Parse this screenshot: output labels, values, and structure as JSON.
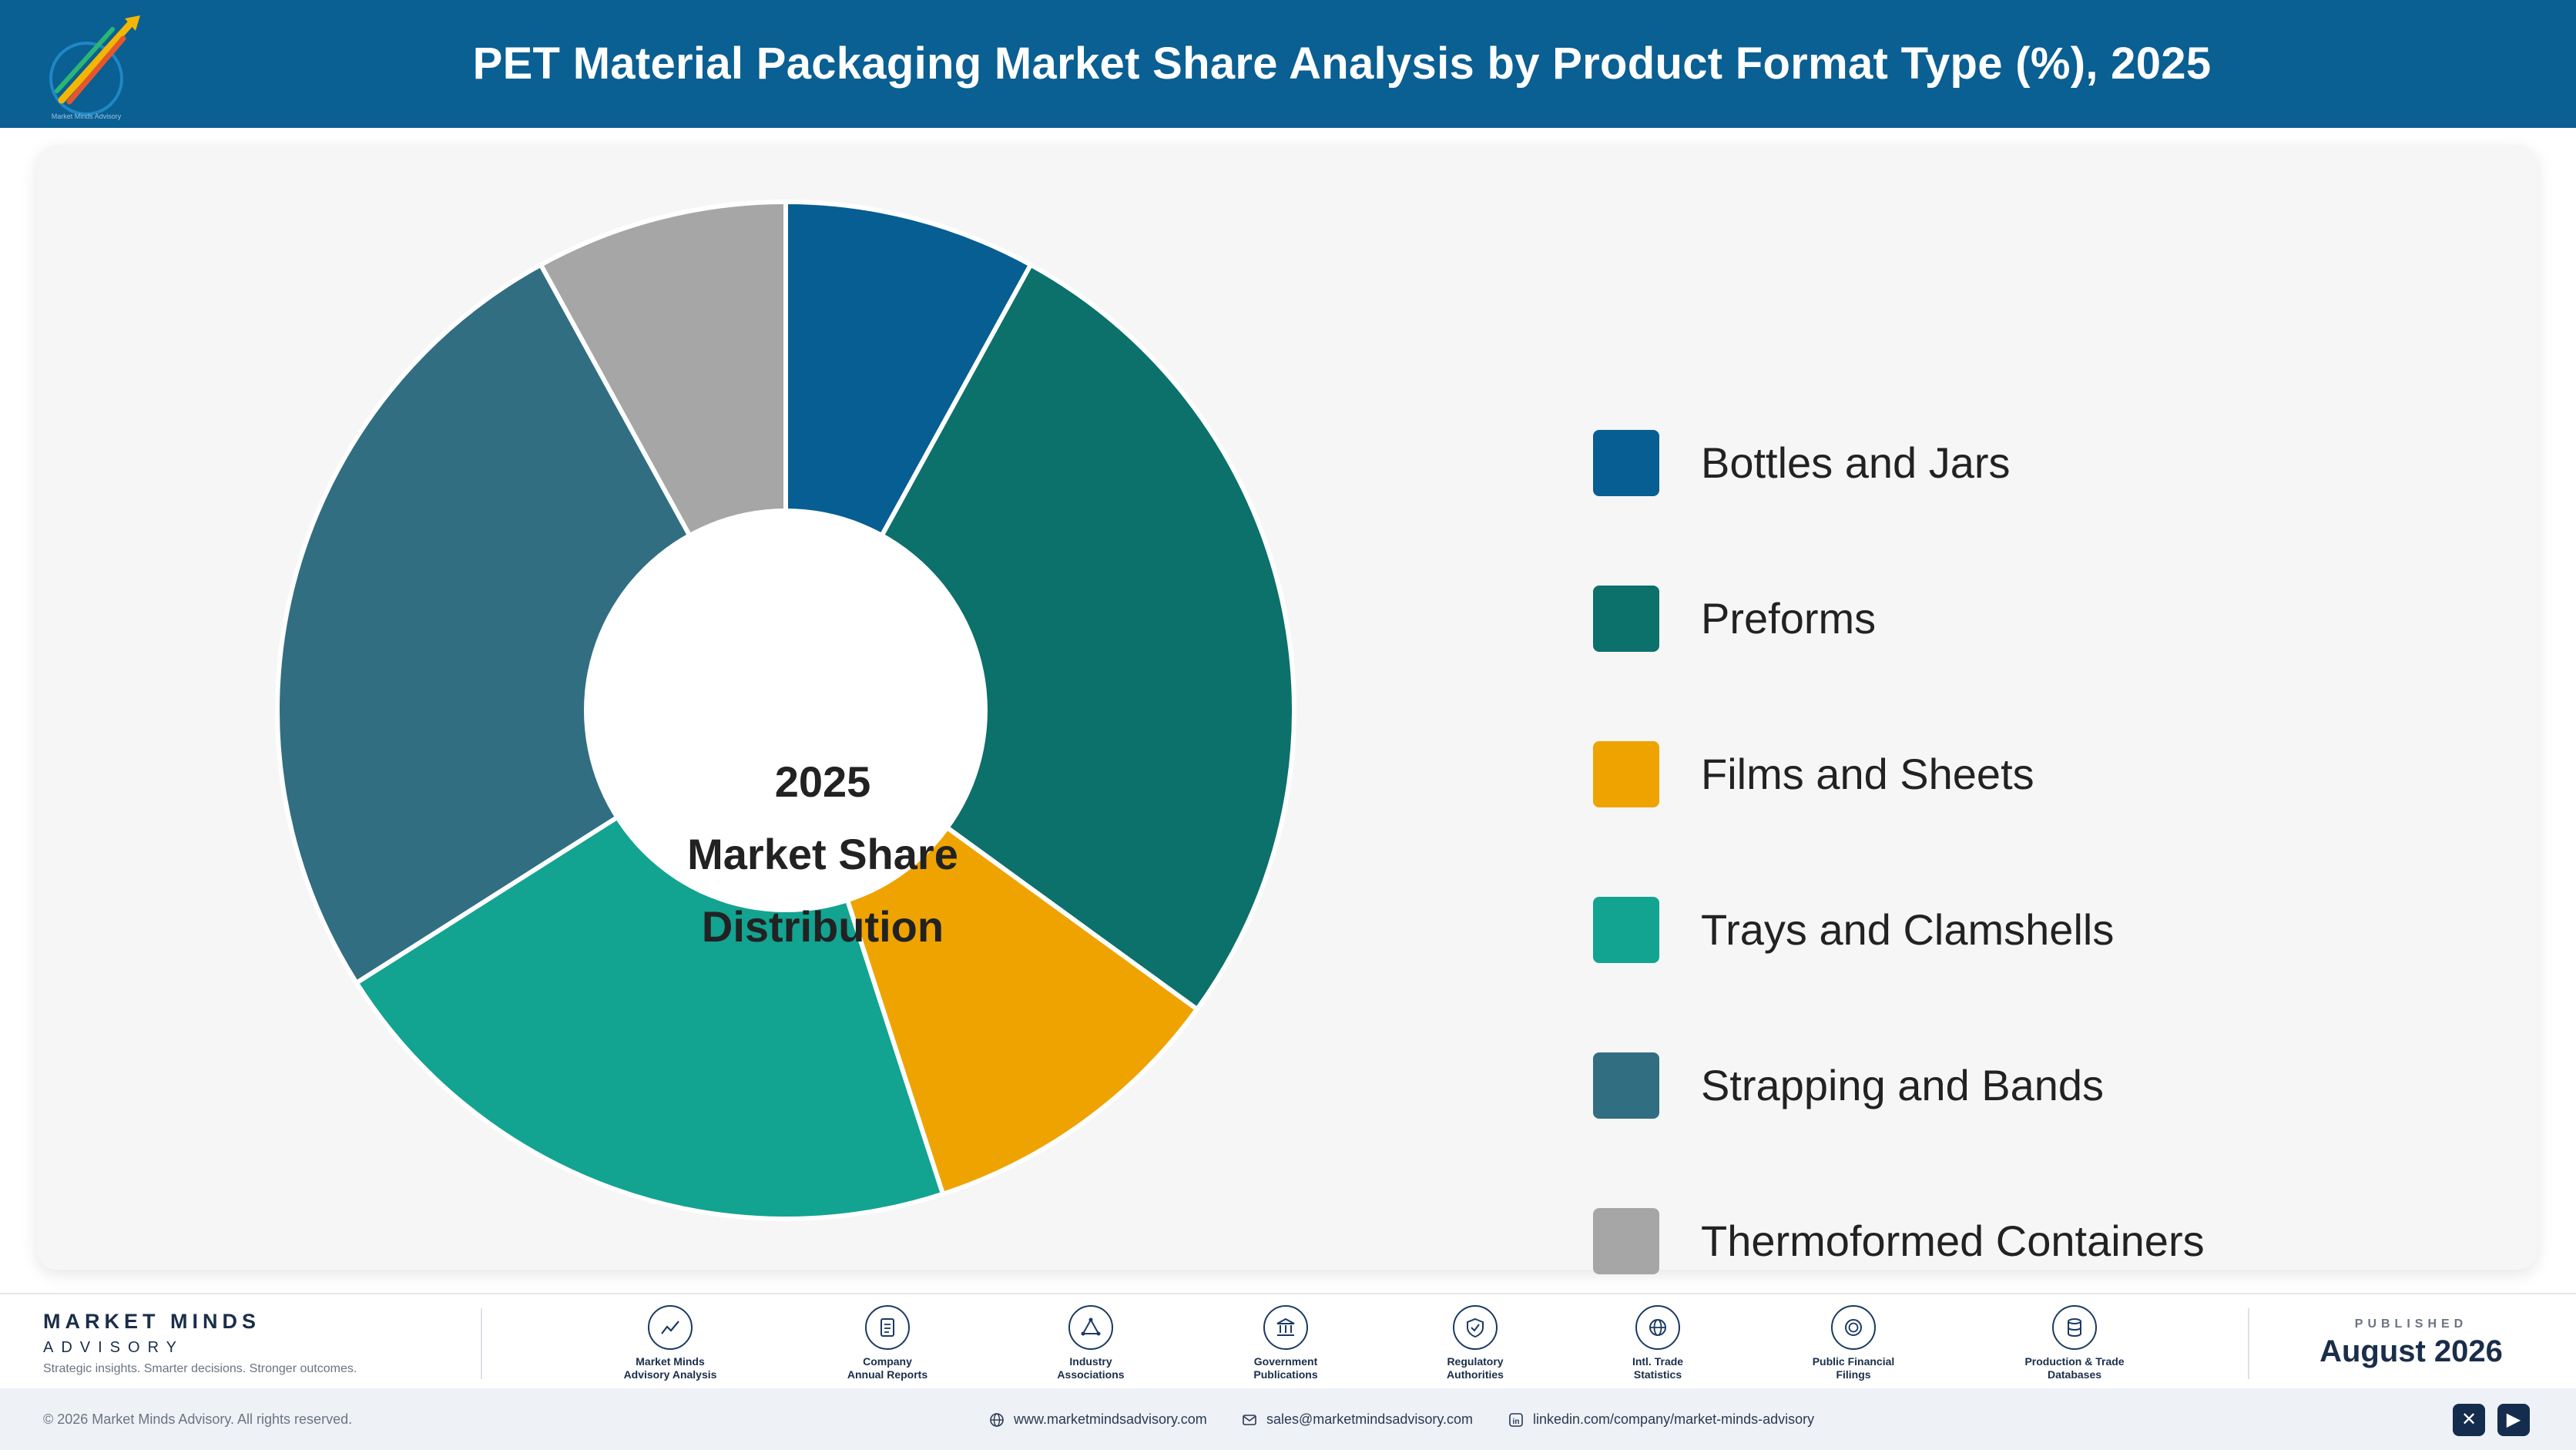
{
  "header": {
    "title": "PET Material Packaging Market Share Analysis by Product Format Type (%), 2025",
    "logo_icon": "rocket-logo-icon"
  },
  "chart_data": {
    "type": "pie",
    "variant": "donut",
    "categories": [
      "Bottles and Jars",
      "Preforms",
      "Films and Sheets",
      "Trays and Clamshells",
      "Strapping and Bands",
      "Thermoformed Containers"
    ],
    "values": [
      8,
      27,
      10,
      21,
      26,
      8
    ],
    "colors": [
      "#065e92",
      "#0c706b",
      "#efa300",
      "#13a391",
      "#316e82",
      "#a6a6a6"
    ],
    "center_label": [
      "2025",
      "Market Share",
      "Distribution"
    ],
    "legend_position": "right"
  },
  "footer": {
    "brand_name": "MARKET MINDS",
    "brand_sub": "ADVISORY",
    "brand_tagline": "Strategic insights. Smarter decisions. Stronger outcomes.",
    "sources": [
      {
        "line1": "Market Minds",
        "line2": "Advisory Analysis",
        "icon": "chart-line-icon"
      },
      {
        "line1": "Company",
        "line2": "Annual Reports",
        "icon": "document-icon"
      },
      {
        "line1": "Industry",
        "line2": "Associations",
        "icon": "network-icon"
      },
      {
        "line1": "Government",
        "line2": "Publications",
        "icon": "building-icon"
      },
      {
        "line1": "Regulatory",
        "line2": "Authorities",
        "icon": "shield-icon"
      },
      {
        "line1": "Intl. Trade",
        "line2": "Statistics",
        "icon": "globe-icon"
      },
      {
        "line1": "Public Financial",
        "line2": "Filings",
        "icon": "coin-icon"
      },
      {
        "line1": "Production & Trade",
        "line2": "Databases",
        "icon": "database-icon"
      }
    ],
    "published_label": "PUBLISHED",
    "published_date": "August 2026"
  },
  "bottombar": {
    "copyright": "© 2026 Market Minds Advisory. All rights reserved.",
    "website": "www.marketmindsadvisory.com",
    "email": "sales@marketmindsadvisory.com",
    "linkedin": "linkedin.com/company/market-minds-advisory"
  }
}
